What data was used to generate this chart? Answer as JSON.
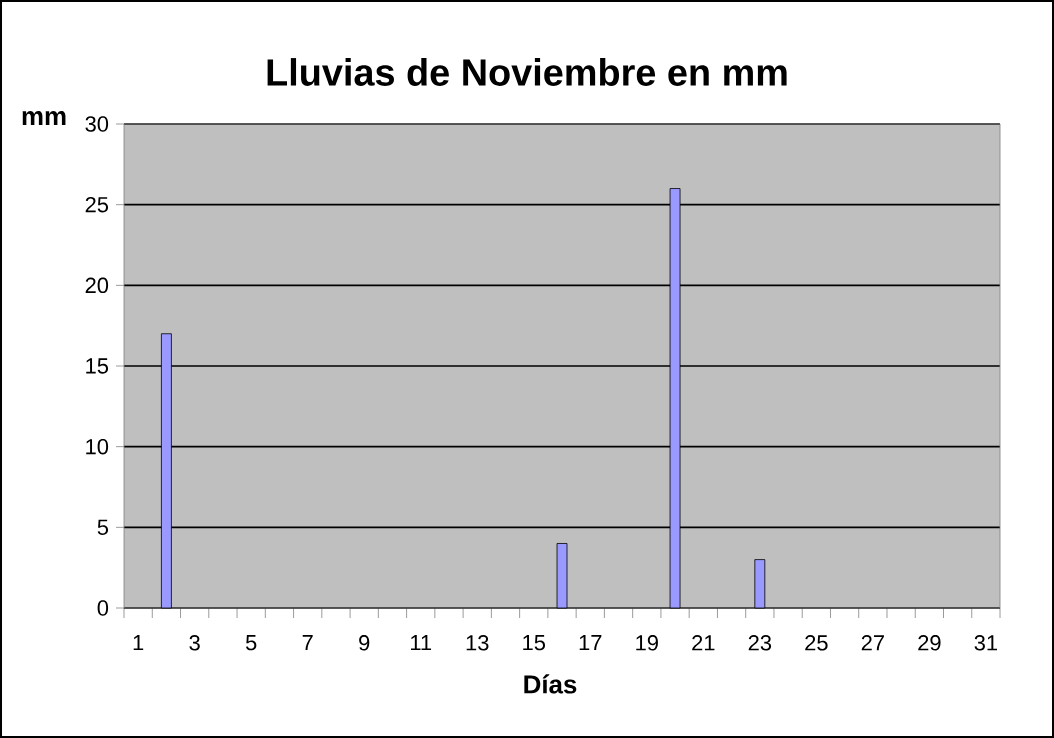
{
  "chart_data": {
    "type": "bar",
    "title": "Lluvias de Noviembre en mm",
    "xlabel": "Días",
    "ylabel": "mm",
    "categories": [
      "1",
      null,
      "3",
      null,
      "5",
      null,
      "7",
      null,
      "9",
      null,
      "11",
      null,
      "13",
      null,
      "15",
      null,
      "17",
      null,
      "19",
      null,
      "21",
      null,
      "23",
      null,
      "25",
      null,
      "27",
      null,
      "29",
      null,
      "31"
    ],
    "values": [
      null,
      17,
      null,
      null,
      null,
      null,
      null,
      null,
      null,
      null,
      null,
      null,
      null,
      null,
      null,
      4,
      null,
      null,
      null,
      26,
      null,
      null,
      3,
      null,
      null,
      null,
      null,
      null,
      null,
      null,
      null
    ],
    "color": "#9999ff",
    "ylim": [
      0,
      30
    ],
    "yticks": [
      0,
      5,
      10,
      15,
      20,
      25,
      30
    ],
    "grid": "y"
  }
}
